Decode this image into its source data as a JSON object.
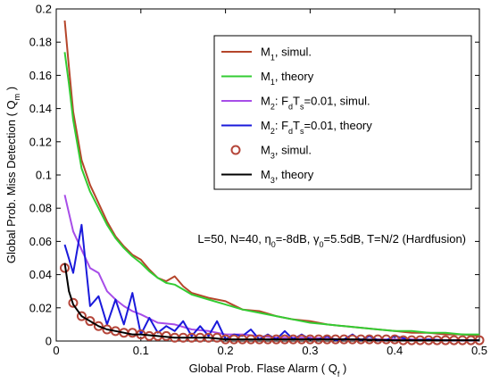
{
  "chart_data": {
    "type": "line",
    "xlabel": "Global Prob. Flase Alarm ( Q",
    "xlabel_sub": "f",
    "xlabel_end": " )",
    "ylabel": "Global Prob. Miss Detection ( Q",
    "ylabel_sub": "m",
    "ylabel_end": " )",
    "xlim": [
      0,
      0.5
    ],
    "ylim": [
      0,
      0.2
    ],
    "xticks": [
      "0",
      "0.1",
      "0.2",
      "0.3",
      "0.4",
      "0.5"
    ],
    "yticks": [
      "0",
      "0.02",
      "0.04",
      "0.06",
      "0.08",
      "0.1",
      "0.12",
      "0.14",
      "0.16",
      "0.18",
      "0.2"
    ],
    "grid": false,
    "legend_position": "top-right",
    "annotation": {
      "parts": [
        {
          "t": "L=50,  N=40, η"
        },
        {
          "t": "0",
          "sub": true
        },
        {
          "t": "=-8dB, γ"
        },
        {
          "t": "0",
          "sub": true
        },
        {
          "t": "=5.5dB, T=N/2 (Hardfusion)"
        }
      ]
    },
    "series": [
      {
        "name_parts": [
          {
            "t": "M"
          },
          {
            "t": "1",
            "sub": true
          },
          {
            "t": ", simul."
          }
        ],
        "color": "#b5462b",
        "style": "line",
        "x": [
          0.01,
          0.015,
          0.02,
          0.03,
          0.04,
          0.05,
          0.06,
          0.07,
          0.08,
          0.09,
          0.1,
          0.11,
          0.12,
          0.13,
          0.14,
          0.15,
          0.16,
          0.18,
          0.2,
          0.22,
          0.24,
          0.26,
          0.28,
          0.3,
          0.32,
          0.34,
          0.36,
          0.38,
          0.4,
          0.42,
          0.44,
          0.46,
          0.48,
          0.5
        ],
        "y": [
          0.193,
          0.165,
          0.138,
          0.109,
          0.094,
          0.083,
          0.072,
          0.063,
          0.057,
          0.052,
          0.049,
          0.043,
          0.038,
          0.036,
          0.039,
          0.033,
          0.029,
          0.026,
          0.024,
          0.019,
          0.018,
          0.015,
          0.013,
          0.012,
          0.01,
          0.009,
          0.008,
          0.007,
          0.006,
          0.005,
          0.005,
          0.004,
          0.004,
          0.003
        ]
      },
      {
        "name_parts": [
          {
            "t": "M"
          },
          {
            "t": "1",
            "sub": true
          },
          {
            "t": ", theory"
          }
        ],
        "color": "#33cc33",
        "style": "line",
        "x": [
          0.01,
          0.015,
          0.02,
          0.03,
          0.04,
          0.05,
          0.06,
          0.07,
          0.08,
          0.09,
          0.1,
          0.11,
          0.12,
          0.13,
          0.14,
          0.15,
          0.16,
          0.18,
          0.2,
          0.22,
          0.24,
          0.26,
          0.28,
          0.3,
          0.32,
          0.34,
          0.36,
          0.38,
          0.4,
          0.42,
          0.44,
          0.46,
          0.48,
          0.5
        ],
        "y": [
          0.174,
          0.155,
          0.133,
          0.104,
          0.09,
          0.08,
          0.07,
          0.062,
          0.056,
          0.051,
          0.047,
          0.042,
          0.038,
          0.035,
          0.034,
          0.031,
          0.028,
          0.025,
          0.022,
          0.019,
          0.017,
          0.015,
          0.013,
          0.011,
          0.01,
          0.009,
          0.008,
          0.007,
          0.006,
          0.006,
          0.005,
          0.005,
          0.004,
          0.004
        ]
      },
      {
        "name_parts": [
          {
            "t": "M"
          },
          {
            "t": "2",
            "sub": true
          },
          {
            "t": ": F"
          },
          {
            "t": "d",
            "sub": true
          },
          {
            "t": "T"
          },
          {
            "t": "s",
            "sub": true
          },
          {
            "t": "=0.01, simul."
          }
        ],
        "color": "#a74de8",
        "style": "line",
        "x": [
          0.01,
          0.02,
          0.03,
          0.04,
          0.05,
          0.06,
          0.07,
          0.08,
          0.09,
          0.1,
          0.12,
          0.14,
          0.16,
          0.18,
          0.2,
          0.22,
          0.24,
          0.26,
          0.28,
          0.3,
          0.34,
          0.38,
          0.42,
          0.46,
          0.5
        ],
        "y": [
          0.088,
          0.066,
          0.055,
          0.044,
          0.041,
          0.03,
          0.025,
          0.021,
          0.018,
          0.016,
          0.011,
          0.01,
          0.007,
          0.006,
          0.004,
          0.004,
          0.003,
          0.002,
          0.002,
          0.002,
          0.001,
          0.001,
          0.001,
          0.0005,
          0.0005
        ]
      },
      {
        "name_parts": [
          {
            "t": "M"
          },
          {
            "t": "2",
            "sub": true
          },
          {
            "t": ": F"
          },
          {
            "t": "d",
            "sub": true
          },
          {
            "t": "T"
          },
          {
            "t": "s",
            "sub": true
          },
          {
            "t": "=0.01, theory"
          }
        ],
        "color": "#1a1adb",
        "style": "line",
        "x": [
          0.01,
          0.02,
          0.03,
          0.04,
          0.05,
          0.06,
          0.07,
          0.08,
          0.09,
          0.1,
          0.11,
          0.12,
          0.13,
          0.14,
          0.15,
          0.16,
          0.17,
          0.18,
          0.19,
          0.2,
          0.21,
          0.22,
          0.23,
          0.24,
          0.25,
          0.26,
          0.27,
          0.28,
          0.29,
          0.3,
          0.31,
          0.32,
          0.33,
          0.34,
          0.35,
          0.36,
          0.37,
          0.38,
          0.39,
          0.4,
          0.42,
          0.44,
          0.46,
          0.48,
          0.5
        ],
        "y": [
          0.058,
          0.041,
          0.07,
          0.021,
          0.027,
          0.01,
          0.025,
          0.01,
          0.029,
          0.004,
          0.014,
          0.005,
          0.009,
          0.006,
          0.012,
          0.003,
          0.009,
          0.003,
          0.012,
          0.001,
          0.004,
          0.003,
          0.007,
          0.001,
          0.004,
          0.001,
          0.006,
          0.001,
          0.004,
          0.001,
          0.001,
          0.003,
          0.0005,
          0.001,
          0.004,
          0.0005,
          0.003,
          0.0005,
          0.0005,
          0.003,
          0.0005,
          0.001,
          0.0005,
          0.0005,
          0.0005
        ]
      },
      {
        "name_parts": [
          {
            "t": "M"
          },
          {
            "t": "3",
            "sub": true
          },
          {
            "t": ", simul."
          }
        ],
        "color": "#b5463a",
        "style": "marker",
        "x": [
          0.01,
          0.02,
          0.03,
          0.04,
          0.05,
          0.06,
          0.07,
          0.08,
          0.09,
          0.1,
          0.11,
          0.12,
          0.13,
          0.14,
          0.15,
          0.16,
          0.17,
          0.18,
          0.19,
          0.2,
          0.21,
          0.22,
          0.23,
          0.24,
          0.25,
          0.26,
          0.27,
          0.28,
          0.29,
          0.3,
          0.31,
          0.32,
          0.33,
          0.34,
          0.35,
          0.36,
          0.37,
          0.38,
          0.39,
          0.4,
          0.41,
          0.42,
          0.43,
          0.44,
          0.45,
          0.46,
          0.47,
          0.48,
          0.49,
          0.5
        ],
        "y": [
          0.044,
          0.023,
          0.015,
          0.012,
          0.009,
          0.007,
          0.006,
          0.005,
          0.005,
          0.004,
          0.003,
          0.003,
          0.003,
          0.002,
          0.002,
          0.002,
          0.002,
          0.002,
          0.002,
          0.001,
          0.001,
          0.001,
          0.001,
          0.001,
          0.001,
          0.001,
          0.001,
          0.001,
          0.001,
          0.001,
          0.001,
          0.001,
          0.001,
          0.001,
          0.001,
          0.001,
          0.001,
          0.001,
          0.001,
          0.001,
          0.0005,
          0.0005,
          0.0005,
          0.0005,
          0.0005,
          0.0005,
          0.0005,
          0.0005,
          0.0005,
          0.0005
        ]
      },
      {
        "name_parts": [
          {
            "t": "M"
          },
          {
            "t": "3",
            "sub": true
          },
          {
            "t": ", theory"
          }
        ],
        "color": "#000000",
        "style": "line",
        "x": [
          0.01,
          0.015,
          0.02,
          0.03,
          0.04,
          0.05,
          0.06,
          0.07,
          0.08,
          0.09,
          0.1,
          0.12,
          0.14,
          0.16,
          0.18,
          0.2,
          0.25,
          0.3,
          0.35,
          0.4,
          0.45,
          0.5
        ],
        "y": [
          0.047,
          0.03,
          0.022,
          0.015,
          0.012,
          0.009,
          0.007,
          0.006,
          0.005,
          0.004,
          0.004,
          0.003,
          0.002,
          0.002,
          0.002,
          0.001,
          0.001,
          0.001,
          0.001,
          0.0005,
          0.0005,
          0.0005
        ]
      }
    ]
  }
}
